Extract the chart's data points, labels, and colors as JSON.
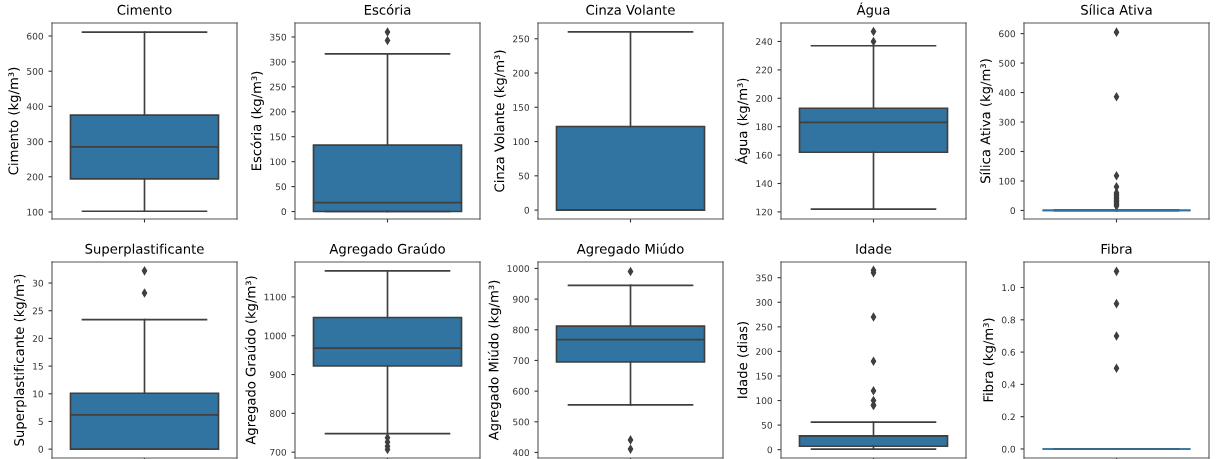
{
  "chart_data": [
    {
      "type": "box",
      "title": "Cimento",
      "ylabel": "Cimento (kg/m³)",
      "categories": [
        null
      ],
      "color": "#3274a1",
      "marker": "diamond",
      "boxes": [
        {
          "low": 102,
          "q1": 194,
          "median": 285,
          "q3": 375,
          "high": 611
        }
      ],
      "ylim": [
        80,
        637
      ],
      "yticks": [
        100,
        200,
        300,
        400,
        500,
        600
      ]
    },
    {
      "type": "box",
      "title": "Escória",
      "ylabel": "Escória (kg/m³)",
      "categories": [
        null
      ],
      "color": "#3274a1",
      "marker": "diamond",
      "boxes": [
        {
          "low": 0,
          "q1": 0,
          "median": 18,
          "q3": 133,
          "high": 316,
          "outliers": [
            343,
            360
          ]
        }
      ],
      "ylim": [
        -15,
        378
      ],
      "yticks": [
        0,
        50,
        100,
        150,
        200,
        250,
        300,
        350
      ]
    },
    {
      "type": "box",
      "title": "Cinza Volante",
      "ylabel": "Cinza Volante (kg/m³)",
      "categories": [
        null
      ],
      "color": "#3274a1",
      "marker": "diamond",
      "boxes": [
        {
          "low": 0,
          "q1": 0,
          "median": 0,
          "q3": 122,
          "high": 260
        }
      ],
      "ylim": [
        -13,
        273
      ],
      "yticks": [
        0,
        50,
        100,
        150,
        200,
        250
      ]
    },
    {
      "type": "box",
      "title": "Água",
      "ylabel": "Água (kg/m³)",
      "categories": [
        null
      ],
      "color": "#3274a1",
      "marker": "diamond",
      "boxes": [
        {
          "low": 122,
          "q1": 162,
          "median": 183,
          "q3": 193,
          "high": 237,
          "outliers": [
            240,
            247
          ]
        }
      ],
      "ylim": [
        115,
        253
      ],
      "yticks": [
        120,
        140,
        160,
        180,
        200,
        220,
        240
      ]
    },
    {
      "type": "box",
      "title": "Sílica Ativa",
      "ylabel": "Sílica Ativa (kg/m³)",
      "categories": [
        null
      ],
      "color": "#3274a1",
      "marker": "diamond",
      "boxes": [
        {
          "low": 0,
          "q1": 0,
          "median": 0,
          "q3": 0,
          "high": 0,
          "outliers": [
            605,
            386,
            118,
            80,
            60,
            55,
            50,
            45,
            40,
            35,
            30,
            25,
            20,
            15
          ]
        }
      ],
      "ylim": [
        -29,
        636
      ],
      "yticks": [
        0,
        100,
        200,
        300,
        400,
        500,
        600
      ]
    },
    {
      "type": "box",
      "title": "Superplastificante",
      "ylabel": "Superplastificante (kg/m³)",
      "categories": [
        null
      ],
      "color": "#3274a1",
      "marker": "diamond",
      "boxes": [
        {
          "low": 0,
          "q1": 0,
          "median": 6.2,
          "q3": 10.1,
          "high": 23.4,
          "outliers": [
            28.2,
            32.2
          ]
        }
      ],
      "ylim": [
        -1.6,
        33.8
      ],
      "yticks": [
        0,
        5,
        10,
        15,
        20,
        25,
        30
      ]
    },
    {
      "type": "box",
      "title": "Agregado Graúdo",
      "ylabel": "Agregado Graúdo (kg/m³)",
      "categories": [
        null
      ],
      "color": "#3274a1",
      "marker": "diamond",
      "boxes": [
        {
          "low": 748,
          "q1": 922,
          "median": 968,
          "q3": 1047,
          "high": 1167,
          "outliers": [
            737,
            726,
            715,
            707
          ]
        }
      ],
      "ylim": [
        685,
        1190
      ],
      "yticks": [
        700,
        800,
        900,
        1000,
        1100
      ]
    },
    {
      "type": "box",
      "title": "Agregado Miúdo",
      "ylabel": "Agregado Miúdo (kg/m³)",
      "categories": [
        null
      ],
      "color": "#3274a1",
      "marker": "diamond",
      "boxes": [
        {
          "low": 555,
          "q1": 695,
          "median": 768,
          "q3": 812,
          "high": 945,
          "outliers": [
            990,
            441,
            411
          ]
        }
      ],
      "ylim": [
        382,
        1021
      ],
      "yticks": [
        400,
        500,
        600,
        700,
        800,
        900,
        1000
      ]
    },
    {
      "type": "box",
      "title": "Idade",
      "ylabel": "Idade (dias)",
      "categories": [
        null
      ],
      "color": "#3274a1",
      "marker": "diamond",
      "boxes": [
        {
          "low": 1,
          "q1": 7,
          "median": 28,
          "q3": 28,
          "high": 56,
          "outliers": [
            365,
            360,
            270,
            180,
            120,
            100,
            91,
            90
          ]
        }
      ],
      "ylim": [
        -17,
        382
      ],
      "yticks": [
        0,
        50,
        100,
        150,
        200,
        250,
        300,
        350
      ]
    },
    {
      "type": "box",
      "title": "Fibra",
      "ylabel": "Fibra (kg/m³)",
      "categories": [
        null
      ],
      "color": "#3274a1",
      "marker": "diamond",
      "boxes": [
        {
          "low": 0,
          "q1": 0,
          "median": 0,
          "q3": 0,
          "high": 0,
          "outliers": [
            1.1,
            0.9,
            0.7,
            0.5
          ]
        }
      ],
      "ylim": [
        -0.056,
        1.158
      ],
      "yticks": [
        {
          "value": 0,
          "label": "0.0"
        },
        {
          "value": 0.2,
          "label": "0.2"
        },
        {
          "value": 0.4,
          "label": "0.4"
        },
        {
          "value": 0.6,
          "label": "0.6"
        },
        {
          "value": 0.8,
          "label": "0.8"
        },
        {
          "value": 1.0,
          "label": "1.0"
        }
      ]
    }
  ]
}
